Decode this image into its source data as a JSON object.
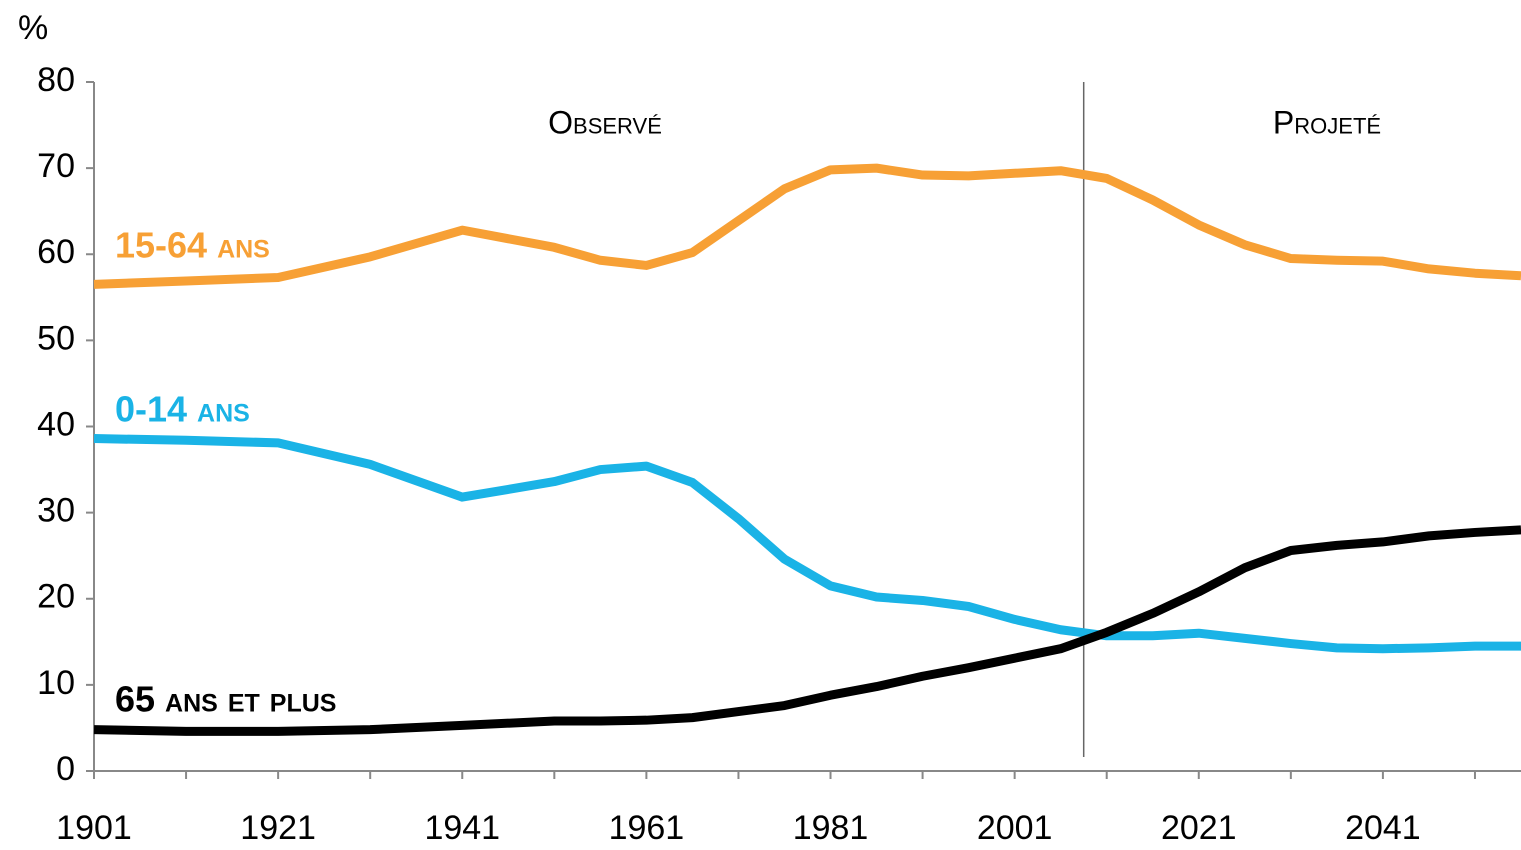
{
  "chart_data": {
    "type": "line",
    "ylabel": "%",
    "x": [
      1901,
      1911,
      1921,
      1931,
      1941,
      1951,
      1956,
      1961,
      1966,
      1971,
      1976,
      1981,
      1986,
      1991,
      1996,
      2001,
      2006,
      2011,
      2016,
      2021,
      2026,
      2031,
      2036,
      2041,
      2046,
      2051,
      2056
    ],
    "series": [
      {
        "name": "15-64 ans",
        "color": "#f7a035",
        "values": [
          56.5,
          56.9,
          57.3,
          59.7,
          62.8,
          60.8,
          59.3,
          58.7,
          60.2,
          63.9,
          67.6,
          69.8,
          70.0,
          69.2,
          69.1,
          69.4,
          69.7,
          68.8,
          66.3,
          63.4,
          61.1,
          59.5,
          59.3,
          59.2,
          58.3,
          57.8,
          57.5
        ]
      },
      {
        "name": "0-14 ans",
        "color": "#1ab3e6",
        "values": [
          38.6,
          38.4,
          38.1,
          35.6,
          31.8,
          33.6,
          35.0,
          35.4,
          33.5,
          29.3,
          24.6,
          21.5,
          20.2,
          19.8,
          19.1,
          17.6,
          16.4,
          15.7,
          15.7,
          16.0,
          15.4,
          14.8,
          14.3,
          14.2,
          14.3,
          14.5,
          14.5
        ]
      },
      {
        "name": "65 ans et plus",
        "color": "#000000",
        "values": [
          4.8,
          4.6,
          4.6,
          4.8,
          5.3,
          5.8,
          5.8,
          5.9,
          6.2,
          6.9,
          7.6,
          8.8,
          9.8,
          11.0,
          12.0,
          13.1,
          14.2,
          16.1,
          18.3,
          20.8,
          23.6,
          25.6,
          26.2,
          26.6,
          27.3,
          27.7,
          28.0
        ]
      }
    ],
    "xlim": [
      1901,
      2056
    ],
    "xticks": [
      1901,
      1921,
      1941,
      1961,
      1981,
      2001,
      2021,
      2041
    ],
    "xminorticks": [
      1911,
      1931,
      1951,
      1971,
      1991,
      2011,
      2031,
      2051
    ],
    "ylim": [
      0,
      80
    ],
    "yticks": [
      0,
      10,
      20,
      30,
      40,
      50,
      60,
      70,
      80
    ],
    "divider": {
      "x": 2008.5,
      "left_label": "Observé",
      "right_label": "Projeté"
    },
    "grid": false
  }
}
